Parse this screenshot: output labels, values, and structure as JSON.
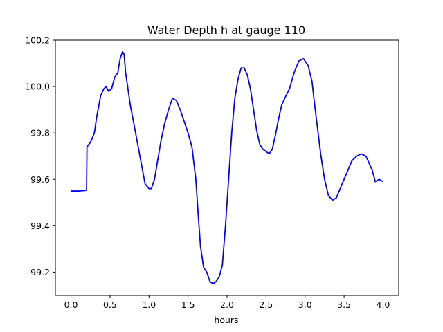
{
  "chart_data": {
    "type": "line",
    "title": "Water Depth h at gauge 110",
    "xlabel": "hours",
    "ylabel": "",
    "xlim": [
      -0.2,
      4.2
    ],
    "ylim": [
      99.1,
      100.2
    ],
    "xticks": [
      0.0,
      0.5,
      1.0,
      1.5,
      2.0,
      2.5,
      3.0,
      3.5,
      4.0
    ],
    "xtick_labels": [
      "0.0",
      "0.5",
      "1.0",
      "1.5",
      "2.0",
      "2.5",
      "3.0",
      "3.5",
      "4.0"
    ],
    "yticks": [
      99.2,
      99.4,
      99.6,
      99.8,
      100.0,
      100.2
    ],
    "ytick_labels": [
      "99.2",
      "99.4",
      "99.6",
      "99.8",
      "100.0",
      "100.2"
    ],
    "grid": false,
    "color": "#0000ff",
    "series": [
      {
        "x": [
          0.0,
          0.1,
          0.18,
          0.2,
          0.205,
          0.25,
          0.3,
          0.33,
          0.38,
          0.42,
          0.45,
          0.48,
          0.52,
          0.56,
          0.6,
          0.63,
          0.66,
          0.68,
          0.7,
          0.73,
          0.76,
          0.8,
          0.85,
          0.9,
          0.95,
          1.0,
          1.03,
          1.07,
          1.11,
          1.15,
          1.2,
          1.25,
          1.3,
          1.35,
          1.4,
          1.45,
          1.5,
          1.55,
          1.6,
          1.63,
          1.66,
          1.7,
          1.74,
          1.78,
          1.82,
          1.86,
          1.9,
          1.94,
          1.98,
          2.02,
          2.06,
          2.1,
          2.14,
          2.18,
          2.22,
          2.26,
          2.3,
          2.34,
          2.38,
          2.42,
          2.46,
          2.5,
          2.54,
          2.58,
          2.62,
          2.66,
          2.7,
          2.74,
          2.8,
          2.86,
          2.92,
          2.98,
          3.04,
          3.09,
          3.12,
          3.16,
          3.2,
          3.25,
          3.3,
          3.35,
          3.4,
          3.45,
          3.5,
          3.55,
          3.6,
          3.66,
          3.72,
          3.78,
          3.82,
          3.86,
          3.9,
          3.95,
          4.0
        ],
        "y": [
          99.55,
          99.55,
          99.552,
          99.555,
          99.74,
          99.76,
          99.8,
          99.87,
          99.96,
          99.99,
          100.0,
          99.98,
          99.99,
          100.04,
          100.06,
          100.12,
          100.15,
          100.14,
          100.06,
          99.99,
          99.92,
          99.85,
          99.76,
          99.67,
          99.58,
          99.56,
          99.56,
          99.6,
          99.68,
          99.76,
          99.84,
          99.9,
          99.95,
          99.94,
          99.9,
          99.85,
          99.8,
          99.74,
          99.6,
          99.45,
          99.31,
          99.22,
          99.2,
          99.16,
          99.15,
          99.16,
          99.18,
          99.23,
          99.4,
          99.6,
          99.8,
          99.95,
          100.03,
          100.08,
          100.08,
          100.05,
          99.99,
          99.9,
          99.81,
          99.75,
          99.73,
          99.72,
          99.71,
          99.73,
          99.79,
          99.86,
          99.92,
          99.95,
          99.99,
          100.06,
          100.11,
          100.12,
          100.09,
          100.02,
          99.93,
          99.82,
          99.71,
          99.6,
          99.53,
          99.51,
          99.52,
          99.56,
          99.6,
          99.64,
          99.68,
          99.7,
          99.71,
          99.7,
          99.67,
          99.64,
          99.59,
          99.6,
          99.59
        ]
      }
    ]
  }
}
